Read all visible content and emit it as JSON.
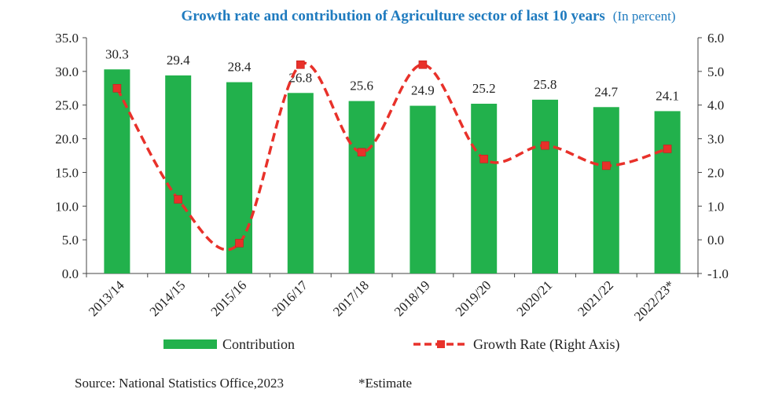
{
  "colors": {
    "bar": "#22b14c",
    "line": "#e8312a",
    "marker": "#e8312a",
    "title": "#1f7bbf",
    "axis": "#444444"
  },
  "footer": {
    "source": "Source: National Statistics Office,2023",
    "note": "*Estimate"
  },
  "chart_data": {
    "type": "bar",
    "title": "Growth rate and contribution of Agriculture sector of last 10 years",
    "subtitle": "(In percent)",
    "categories": [
      "2013/14",
      "2014/15",
      "2015/16",
      "2016/17",
      "2017/18",
      "2018/19",
      "2019/20",
      "2020/21",
      "2021/22",
      "2022/23*"
    ],
    "series": [
      {
        "name": "Contribution",
        "type": "bar",
        "axis": "left",
        "values": [
          30.3,
          29.4,
          28.4,
          26.8,
          25.6,
          24.9,
          25.2,
          25.8,
          24.7,
          24.1
        ]
      },
      {
        "name": "Growth Rate (Right Axis)",
        "type": "line",
        "axis": "right",
        "values": [
          4.5,
          1.2,
          -0.1,
          5.2,
          2.6,
          5.2,
          2.4,
          2.8,
          2.2,
          2.7
        ]
      }
    ],
    "y_left": {
      "min": 0,
      "max": 35,
      "step": 5,
      "ticks": [
        "0.0",
        "5.0",
        "10.0",
        "15.0",
        "20.0",
        "25.0",
        "30.0",
        "35.0"
      ]
    },
    "y_right": {
      "min": -1,
      "max": 6,
      "step": 1,
      "ticks": [
        "-1.0",
        "0.0",
        "1.0",
        "2.0",
        "3.0",
        "4.0",
        "5.0",
        "6.0"
      ]
    },
    "data_labels": [
      "30.3",
      "29.4",
      "28.4",
      "26.8",
      "25.6",
      "24.9",
      "25.2",
      "25.8",
      "24.7",
      "24.1"
    ],
    "grid": false,
    "legend": "bottom"
  }
}
